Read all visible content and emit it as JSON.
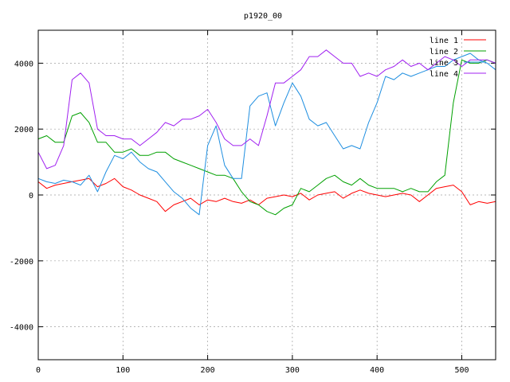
{
  "chart_data": {
    "type": "line",
    "title": "p1920_00",
    "xlabel": "",
    "ylabel": "",
    "xlim": [
      0,
      540
    ],
    "ylim": [
      -5000,
      5000
    ],
    "xticks": [
      0,
      100,
      200,
      300,
      400,
      500
    ],
    "yticks": [
      -4000,
      -2000,
      0,
      2000,
      4000
    ],
    "grid": true,
    "legend_position": "top-right",
    "series": [
      {
        "name": "line 1",
        "color": "#ff0000",
        "x": [
          0,
          10,
          20,
          30,
          40,
          50,
          60,
          70,
          80,
          90,
          100,
          110,
          120,
          130,
          140,
          150,
          160,
          170,
          180,
          190,
          200,
          210,
          220,
          230,
          240,
          250,
          260,
          270,
          280,
          290,
          300,
          310,
          320,
          330,
          340,
          350,
          360,
          370,
          380,
          390,
          400,
          410,
          420,
          430,
          440,
          450,
          460,
          470,
          480,
          490,
          500,
          510,
          520,
          530,
          540
        ],
        "y": [
          400,
          200,
          300,
          350,
          400,
          450,
          500,
          250,
          350,
          500,
          250,
          150,
          0,
          -100,
          -200,
          -500,
          -300,
          -200,
          -100,
          -300,
          -150,
          -200,
          -100,
          -200,
          -250,
          -150,
          -300,
          -100,
          -50,
          0,
          -50,
          50,
          -150,
          0,
          50,
          100,
          -100,
          50,
          150,
          50,
          0,
          -50,
          0,
          50,
          0,
          -200,
          0,
          200,
          250,
          300,
          100,
          -300,
          -200,
          -250,
          -200
        ]
      },
      {
        "name": "line 2",
        "color": "#00a000",
        "x": [
          0,
          10,
          20,
          30,
          40,
          50,
          60,
          70,
          80,
          90,
          100,
          110,
          120,
          130,
          140,
          150,
          160,
          170,
          180,
          190,
          200,
          210,
          220,
          230,
          240,
          250,
          260,
          270,
          280,
          290,
          300,
          310,
          320,
          330,
          340,
          350,
          360,
          370,
          380,
          390,
          400,
          410,
          420,
          430,
          440,
          450,
          460,
          470,
          480,
          490,
          500,
          510,
          520,
          530,
          540
        ],
        "y": [
          1700,
          1800,
          1600,
          1600,
          2400,
          2500,
          2200,
          1600,
          1600,
          1300,
          1300,
          1400,
          1200,
          1200,
          1300,
          1300,
          1100,
          1000,
          900,
          800,
          700,
          600,
          600,
          500,
          100,
          -200,
          -300,
          -500,
          -600,
          -400,
          -300,
          200,
          100,
          300,
          500,
          600,
          400,
          300,
          500,
          300,
          200,
          200,
          200,
          100,
          200,
          100,
          100,
          400,
          600,
          2800,
          4100,
          4000,
          4000,
          4100,
          4000
        ]
      },
      {
        "name": "line 3",
        "color": "#1e8ee0",
        "x": [
          0,
          10,
          20,
          30,
          40,
          50,
          60,
          70,
          80,
          90,
          100,
          110,
          120,
          130,
          140,
          150,
          160,
          170,
          180,
          190,
          200,
          210,
          220,
          230,
          240,
          250,
          260,
          270,
          280,
          290,
          300,
          310,
          320,
          330,
          340,
          350,
          360,
          370,
          380,
          390,
          400,
          410,
          420,
          430,
          440,
          450,
          460,
          470,
          480,
          490,
          500,
          510,
          520,
          530,
          540
        ],
        "y": [
          500,
          400,
          350,
          450,
          400,
          300,
          600,
          100,
          700,
          1200,
          1100,
          1300,
          1000,
          800,
          700,
          400,
          100,
          -100,
          -400,
          -600,
          1500,
          2100,
          900,
          500,
          500,
          2700,
          3000,
          3100,
          2100,
          2800,
          3400,
          3000,
          2300,
          2100,
          2200,
          1800,
          1400,
          1500,
          1400,
          2200,
          2800,
          3600,
          3500,
          3700,
          3600,
          3700,
          3800,
          3900,
          3900,
          4100,
          4200,
          4300,
          4100,
          4000,
          3800
        ]
      },
      {
        "name": "line 4",
        "color": "#a020f0",
        "x": [
          0,
          10,
          20,
          30,
          40,
          50,
          60,
          70,
          80,
          90,
          100,
          110,
          120,
          130,
          140,
          150,
          160,
          170,
          180,
          190,
          200,
          210,
          220,
          230,
          240,
          250,
          260,
          270,
          280,
          290,
          300,
          310,
          320,
          330,
          340,
          350,
          360,
          370,
          380,
          390,
          400,
          410,
          420,
          430,
          440,
          450,
          460,
          470,
          480,
          490,
          500,
          510,
          520,
          530,
          540
        ],
        "y": [
          1300,
          800,
          900,
          1500,
          3500,
          3700,
          3400,
          2000,
          1800,
          1800,
          1700,
          1700,
          1500,
          1700,
          1900,
          2200,
          2100,
          2300,
          2300,
          2400,
          2600,
          2200,
          1700,
          1500,
          1500,
          1700,
          1500,
          2400,
          3400,
          3400,
          3600,
          3800,
          4200,
          4200,
          4400,
          4200,
          4000,
          4000,
          3600,
          3700,
          3600,
          3800,
          3900,
          4100,
          3900,
          4000,
          3800,
          4000,
          4200,
          4100,
          3900,
          4100,
          4100,
          4100,
          4000
        ]
      }
    ]
  }
}
